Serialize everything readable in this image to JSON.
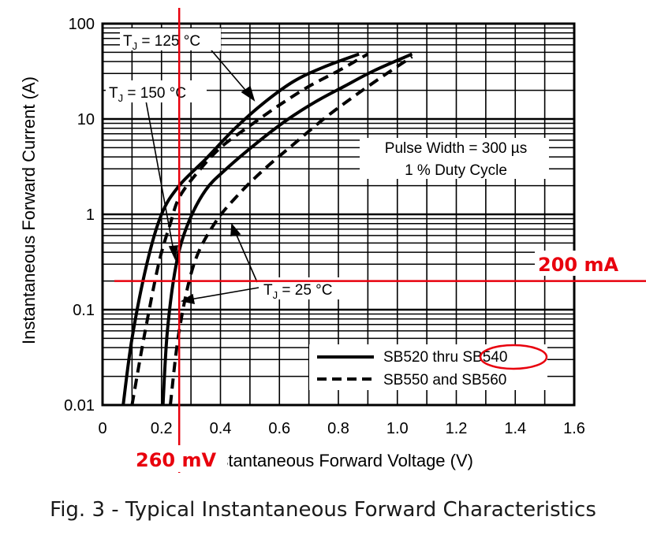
{
  "caption": "Fig. 3 - Typical Instantaneous Forward Characteristics",
  "chart_data": {
    "type": "line",
    "xlabel": "Instantaneous Forward Voltage (V)",
    "ylabel": "Instantaneous Forward Current (A)",
    "xlim": [
      0,
      1.6
    ],
    "ylim": [
      0.01,
      100
    ],
    "yscale": "log",
    "grid": true,
    "x_ticks": [
      "0",
      "0.2",
      "0.4",
      "0.6",
      "0.8",
      "1.0",
      "1.2",
      "1.4",
      "1.6"
    ],
    "y_ticks": [
      "0.01",
      "0.1",
      "1",
      "10",
      "100"
    ],
    "note_lines": [
      "Pulse Width = 300 µs",
      "1 % Duty Cycle"
    ],
    "legend": {
      "position": "bottom-right",
      "entries": [
        {
          "label": "SB520 thru SB540",
          "style": "solid"
        },
        {
          "label": "SB550 and SB560",
          "style": "dashed"
        }
      ]
    },
    "temperature_labels": [
      {
        "main": "T",
        "sub": "J",
        "rest": " = 125 °C"
      },
      {
        "main": "T",
        "sub": "J",
        "rest": " = 150 °C"
      },
      {
        "main": "T",
        "sub": "J",
        "rest": " = 25 °C"
      }
    ],
    "series": [
      {
        "style": "solid",
        "x": [
          0.07,
          0.1,
          0.15,
          0.2,
          0.26,
          0.35,
          0.45,
          0.55,
          0.65,
          0.75,
          0.87
        ],
        "y": [
          0.01,
          0.05,
          0.3,
          1.0,
          2.0,
          3.8,
          8.0,
          15,
          25,
          35,
          48
        ]
      },
      {
        "style": "solid",
        "x": [
          0.205,
          0.22,
          0.25,
          0.29,
          0.35,
          0.42,
          0.52,
          0.62,
          0.72,
          0.82,
          0.92,
          1.05
        ],
        "y": [
          0.01,
          0.06,
          0.3,
          0.8,
          1.8,
          3.0,
          5.5,
          9.5,
          15,
          22,
          32,
          48
        ]
      },
      {
        "style": "dashed",
        "x": [
          0.1,
          0.14,
          0.19,
          0.23,
          0.26,
          0.32,
          0.4,
          0.5,
          0.6,
          0.7,
          0.8,
          0.9
        ],
        "y": [
          0.01,
          0.05,
          0.3,
          0.8,
          1.5,
          2.7,
          5.0,
          8.5,
          14,
          22,
          32,
          48
        ]
      },
      {
        "style": "dashed",
        "x": [
          0.23,
          0.26,
          0.31,
          0.38,
          0.46,
          0.55,
          0.65,
          0.75,
          0.85,
          0.95,
          1.05
        ],
        "y": [
          0.01,
          0.06,
          0.3,
          0.8,
          1.6,
          3.0,
          5.5,
          10,
          17,
          28,
          45
        ]
      }
    ],
    "annotations": {
      "color": "#e8000d",
      "current_label": "200 mA",
      "current_value": 0.2,
      "voltage_label": "260 mV",
      "voltage_value": 0.26,
      "circled_text": "SB540"
    }
  }
}
